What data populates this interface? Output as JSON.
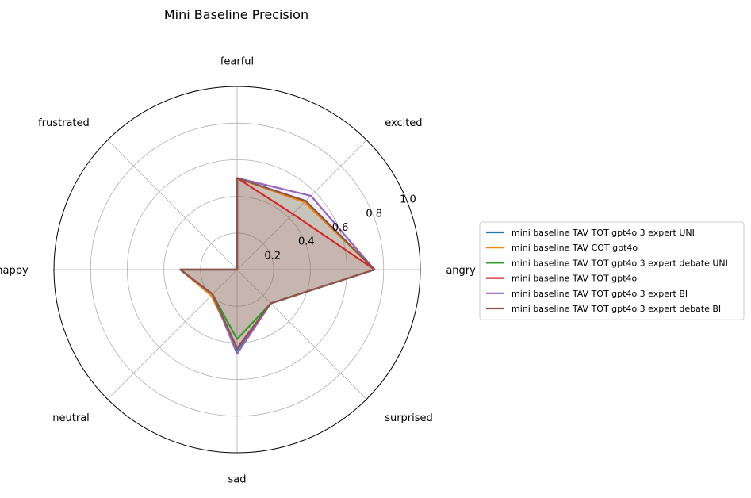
{
  "chart_data": {
    "type": "radar",
    "title": "Mini Baseline Precision",
    "categories": [
      "angry",
      "excited",
      "fearful",
      "frustrated",
      "happy",
      "neutral",
      "sad",
      "surprised"
    ],
    "rlim": [
      0,
      1.0
    ],
    "radial_ticks": [
      0.2,
      0.4,
      0.6,
      0.8,
      1.0
    ],
    "radial_tick_labels": [
      "0.2",
      "0.4",
      "0.6",
      "0.8",
      "1.0"
    ],
    "grid": true,
    "legend_position": "right",
    "series": [
      {
        "name": "mini baseline TAV TOT gpt4o 3 expert UNI",
        "color": "#1f77b4",
        "values": [
          0.75,
          0.53,
          0.5,
          0.0,
          0.31,
          0.19,
          0.44,
          0.26
        ]
      },
      {
        "name": "mini baseline TAV COT gpt4o",
        "color": "#ff7f0e",
        "values": [
          0.75,
          0.52,
          0.5,
          0.0,
          0.31,
          0.2,
          0.43,
          0.26
        ]
      },
      {
        "name": "mini baseline TAV TOT gpt4o 3 expert debate UNI",
        "color": "#2ca02c",
        "values": [
          0.75,
          0.53,
          0.5,
          0.0,
          0.31,
          0.19,
          0.38,
          0.26
        ]
      },
      {
        "name": "mini baseline TAV TOT gpt4o",
        "color": "#d62728",
        "values": [
          0.75,
          0.43,
          0.5,
          0.0,
          0.31,
          0.19,
          0.43,
          0.26
        ]
      },
      {
        "name": "mini baseline TAV TOT gpt4o 3 expert BI",
        "color": "#9467bd",
        "values": [
          0.75,
          0.57,
          0.5,
          0.0,
          0.31,
          0.19,
          0.46,
          0.26
        ]
      },
      {
        "name": "mini baseline TAV TOT gpt4o 3 expert debate BI",
        "color": "#8c564b",
        "values": [
          0.75,
          0.53,
          0.5,
          0.0,
          0.31,
          0.19,
          0.43,
          0.26
        ]
      }
    ]
  }
}
